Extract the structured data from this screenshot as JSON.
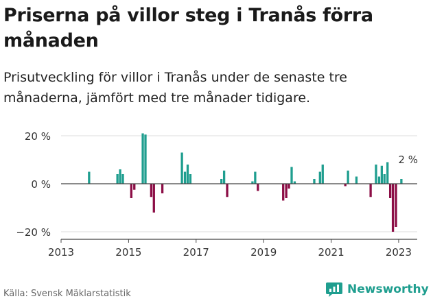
{
  "header": {
    "title": "Priserna på villor steg i Tranås förra månaden",
    "subtitle": "Prisutveckling för villor i Tranås under de senaste tre månaderna, jämfört med tre månader tidigare."
  },
  "footer": {
    "source": "Källa: Svensk Mäklarstatistik",
    "brand": "Newsworthy"
  },
  "colors": {
    "positive": "#1f9e8f",
    "negative": "#8c0e46",
    "brand": "#1f9e8f"
  },
  "chart_data": {
    "type": "bar",
    "title": "Priserna på villor steg i Tranås förra månaden",
    "xlabel": "",
    "ylabel": "",
    "xlim": [
      2013.0,
      2023.55
    ],
    "ylim": [
      -22,
      22
    ],
    "yticks": [
      20,
      0,
      -20
    ],
    "ytick_labels": [
      "20 %",
      "0 %",
      "−20 %"
    ],
    "xticks": [
      2013,
      2015,
      2017,
      2019,
      2021,
      2023
    ],
    "xtick_labels": [
      "2013",
      "2015",
      "2017",
      "2019",
      "2021",
      "2023"
    ],
    "annotation": {
      "x": 2023.0,
      "label": "2 %"
    },
    "points": [
      {
        "x": 2013.83,
        "value": 5
      },
      {
        "x": 2014.67,
        "value": 4
      },
      {
        "x": 2014.75,
        "value": 6
      },
      {
        "x": 2014.83,
        "value": 4
      },
      {
        "x": 2015.08,
        "value": -6
      },
      {
        "x": 2015.17,
        "value": -2.5
      },
      {
        "x": 2015.42,
        "value": 21
      },
      {
        "x": 2015.5,
        "value": 20.5
      },
      {
        "x": 2015.67,
        "value": -5.5
      },
      {
        "x": 2015.75,
        "value": -12
      },
      {
        "x": 2016.0,
        "value": -4
      },
      {
        "x": 2016.58,
        "value": 13
      },
      {
        "x": 2016.67,
        "value": 5
      },
      {
        "x": 2016.75,
        "value": 8
      },
      {
        "x": 2016.83,
        "value": 4
      },
      {
        "x": 2017.75,
        "value": 2
      },
      {
        "x": 2017.83,
        "value": 5.5
      },
      {
        "x": 2017.92,
        "value": -5.5
      },
      {
        "x": 2018.67,
        "value": 1
      },
      {
        "x": 2018.75,
        "value": 5
      },
      {
        "x": 2018.83,
        "value": -3
      },
      {
        "x": 2019.58,
        "value": -7
      },
      {
        "x": 2019.67,
        "value": -6
      },
      {
        "x": 2019.75,
        "value": -2
      },
      {
        "x": 2019.83,
        "value": 7
      },
      {
        "x": 2019.92,
        "value": 1
      },
      {
        "x": 2020.5,
        "value": 2
      },
      {
        "x": 2020.67,
        "value": 5
      },
      {
        "x": 2020.75,
        "value": 8
      },
      {
        "x": 2021.42,
        "value": -1
      },
      {
        "x": 2021.5,
        "value": 5.5
      },
      {
        "x": 2021.75,
        "value": 3
      },
      {
        "x": 2022.17,
        "value": -5.5
      },
      {
        "x": 2022.33,
        "value": 8
      },
      {
        "x": 2022.42,
        "value": 3
      },
      {
        "x": 2022.5,
        "value": 7.5
      },
      {
        "x": 2022.58,
        "value": 4
      },
      {
        "x": 2022.67,
        "value": 9
      },
      {
        "x": 2022.75,
        "value": -6
      },
      {
        "x": 2022.83,
        "value": -20
      },
      {
        "x": 2022.92,
        "value": -18
      },
      {
        "x": 2023.08,
        "value": 2
      }
    ]
  }
}
